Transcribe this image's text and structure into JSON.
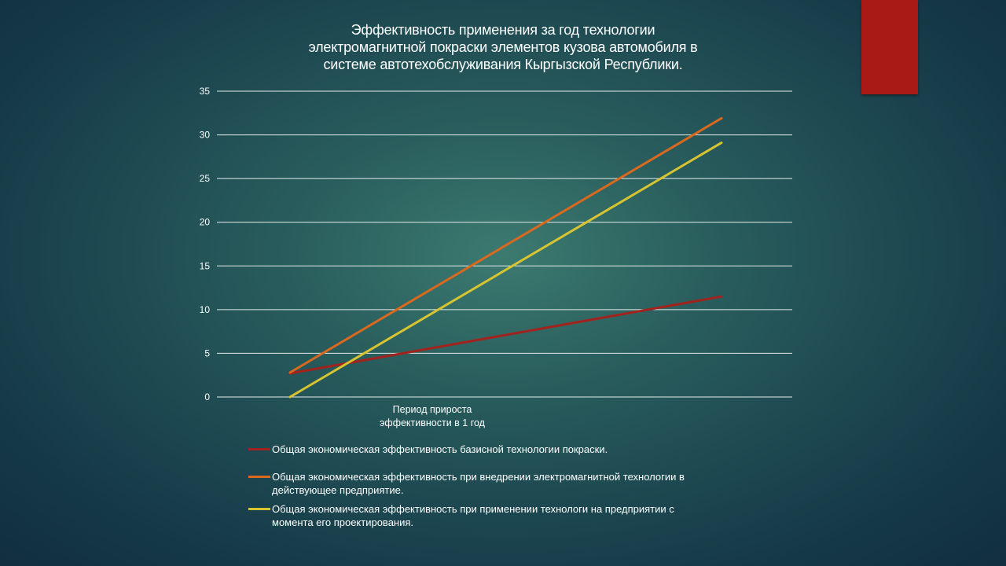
{
  "slide": {
    "accent_color": "#a91915"
  },
  "chart_data": {
    "type": "line",
    "title_lines": [
      "Эффективность применения за год технологии",
      "электромагнитной покраски элементов кузова автомобиля в",
      "системе автотехобслуживания Кыргызской Республики."
    ],
    "category_lines": [
      "Период прироста",
      "эффективности  в 1 год"
    ],
    "ylim": [
      0,
      35
    ],
    "y_ticks": [
      "0",
      "5",
      "10",
      "15",
      "20",
      "25",
      "30",
      "35"
    ],
    "y_tick_values": [
      0,
      5,
      10,
      15,
      20,
      25,
      30,
      35
    ],
    "grid": true,
    "legend_position": "bottom",
    "series": [
      {
        "name_lines": [
          "Общая экономическая эффективность базисной технологии покраски."
        ],
        "color": "#a3221d",
        "values": [
          2.7,
          11.5
        ]
      },
      {
        "name_lines": [
          "Общая экономическая эффективность при внедрении электромагнитной технологии в",
          "действующее предприятие."
        ],
        "color": "#d9691f",
        "values": [
          2.8,
          31.9
        ]
      },
      {
        "name_lines": [
          "Общая экономическая эффективность при применении технологи на предприятии с",
          "момента его проектирования."
        ],
        "color": "#d8c431",
        "values": [
          0,
          29.1
        ]
      }
    ]
  }
}
